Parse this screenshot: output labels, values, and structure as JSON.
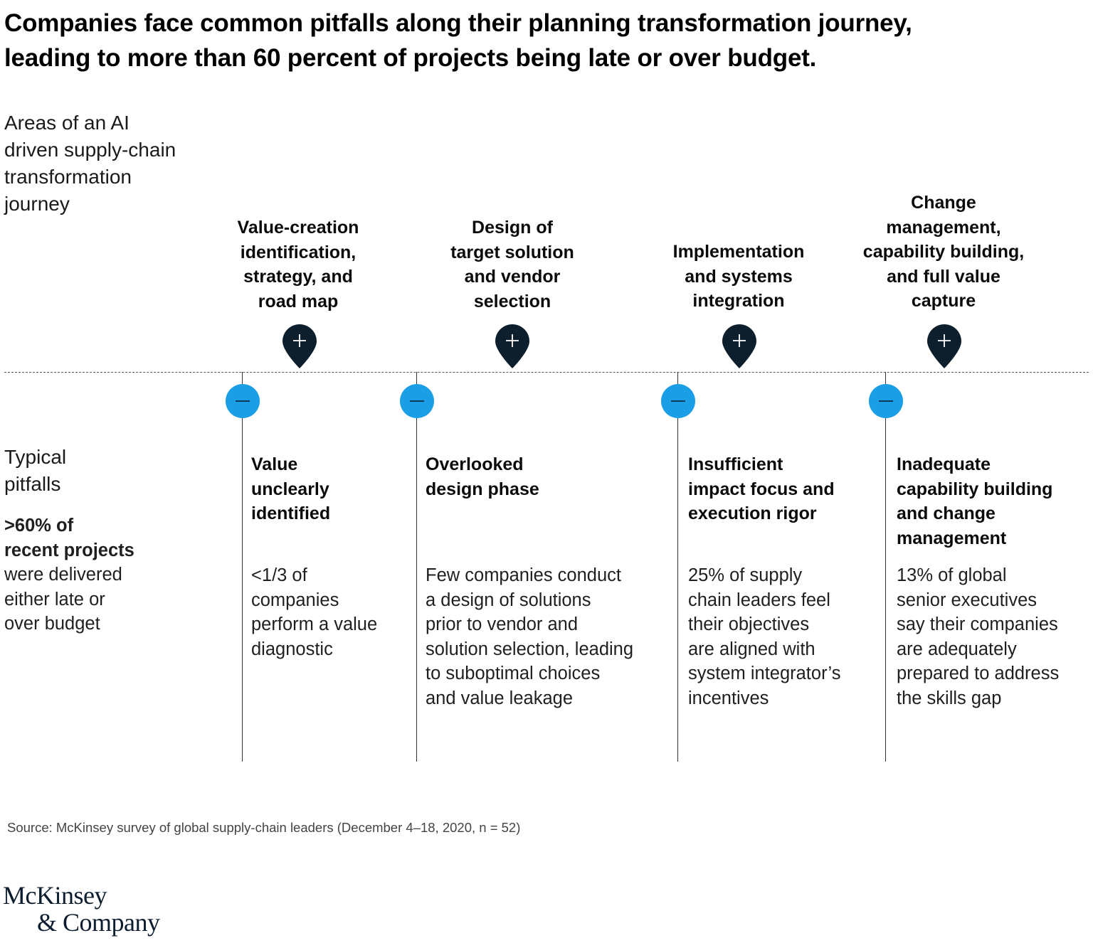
{
  "title": {
    "lines": [
      "Companies face common pitfalls along their planning transformation journey,",
      "leading to more than 60 percent of projects being late or over budget."
    ]
  },
  "areas_label": [
    "Areas of an AI",
    "driven supply-chain",
    "transformation",
    "journey"
  ],
  "pitfalls_label": [
    "Typical",
    "pitfalls"
  ],
  "stat": {
    "strong": [
      ">60% of",
      "recent projects"
    ],
    "regular": [
      "were delivered",
      "either late or",
      "over budget"
    ]
  },
  "phases": [
    {
      "lines": [
        "Value-creation",
        "identification,",
        "strategy, and",
        "road map"
      ],
      "icon": "plus-pin-icon"
    },
    {
      "lines": [
        "Design of",
        "target solution",
        "and vendor",
        "selection"
      ],
      "icon": "plus-pin-icon"
    },
    {
      "lines": [
        "Implementation",
        "and systems",
        "integration"
      ],
      "icon": "plus-pin-icon"
    },
    {
      "lines": [
        "Change",
        "management,",
        "capability building,",
        "and full value",
        "capture"
      ],
      "icon": "plus-pin-icon"
    }
  ],
  "pitfalls": [
    {
      "title": [
        "Value",
        "unclearly",
        "identified"
      ],
      "desc": [
        "<1/3 of",
        "companies",
        "perform a value",
        "diagnostic"
      ],
      "icon": "minus-circle-icon"
    },
    {
      "title": [
        "Overlooked",
        "design phase"
      ],
      "desc": [
        "Few companies conduct",
        "a design of solutions",
        "prior to vendor and",
        "solution selection, leading",
        "to suboptimal choices",
        "and value leakage"
      ],
      "icon": "minus-circle-icon"
    },
    {
      "title": [
        "Insufficient",
        "impact focus and",
        "execution rigor"
      ],
      "desc": [
        "25% of supply",
        "chain leaders feel",
        "their objectives",
        "are aligned with",
        "system integrator’s",
        "incentives"
      ],
      "icon": "minus-circle-icon"
    },
    {
      "title": [
        "Inadequate",
        "capability building",
        "and change",
        "management"
      ],
      "desc": [
        "13% of global",
        "senior executives",
        "say their companies",
        "are adequately",
        "prepared to address",
        "the skills gap"
      ],
      "icon": "minus-circle-icon"
    }
  ],
  "source": "Source: McKinsey survey of global supply-chain leaders (December 4–18, 2020, n = 52)",
  "logo": [
    "McKinsey",
    "& Company"
  ],
  "colors": {
    "pin": "#0d1f2d",
    "minus_circle": "#1a9ee6",
    "text": "#000000"
  }
}
